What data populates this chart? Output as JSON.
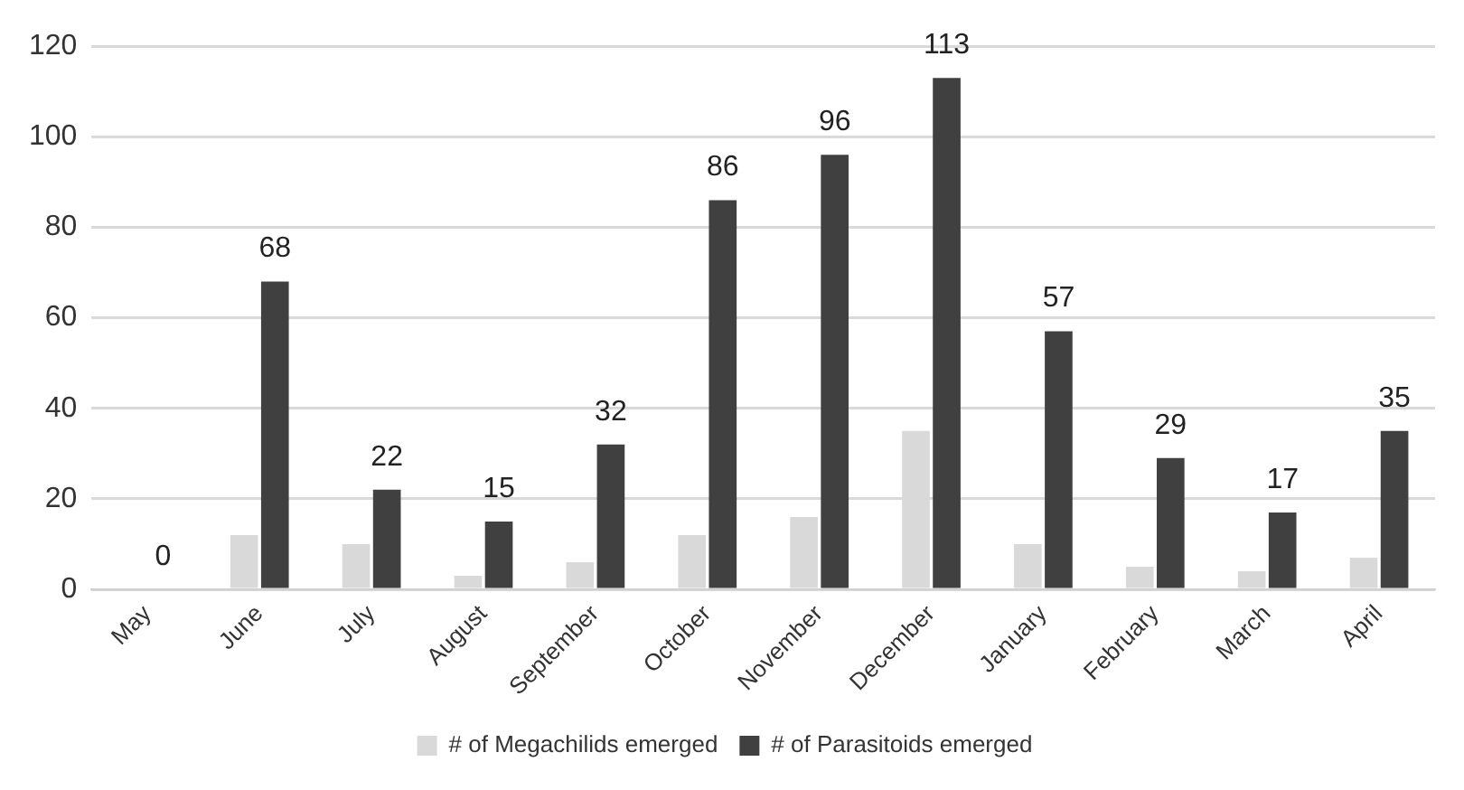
{
  "chart_data": {
    "type": "bar",
    "categories": [
      "May",
      "June",
      "July",
      "August",
      "September",
      "October",
      "November",
      "December",
      "January",
      "February",
      "March",
      "April"
    ],
    "series": [
      {
        "name": "# of Megachilids emerged",
        "color": "#d9d9d9",
        "values": [
          0,
          12,
          10,
          3,
          6,
          12,
          16,
          35,
          10,
          5,
          4,
          7
        ]
      },
      {
        "name": "# of Parasitoids emerged",
        "color": "#404040",
        "values": [
          0,
          68,
          22,
          15,
          32,
          86,
          96,
          113,
          57,
          29,
          17,
          35
        ],
        "value_labels": [
          "0",
          "68",
          "22",
          "15",
          "32",
          "86",
          "96",
          "113",
          "57",
          "29",
          "17",
          "35"
        ]
      }
    ],
    "ylim": [
      0,
      120
    ],
    "yticks": [
      0,
      20,
      40,
      60,
      80,
      100,
      120
    ],
    "grid": "y",
    "legend": "bottom"
  }
}
